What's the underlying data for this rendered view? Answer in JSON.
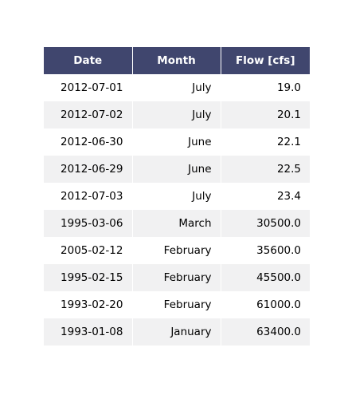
{
  "chart_data": {
    "type": "table",
    "columns": [
      "Date",
      "Month",
      "Flow [cfs]"
    ],
    "rows": [
      [
        "2012-07-01",
        "July",
        "19.0"
      ],
      [
        "2012-07-02",
        "July",
        "20.1"
      ],
      [
        "2012-06-30",
        "June",
        "22.1"
      ],
      [
        "2012-06-29",
        "June",
        "22.5"
      ],
      [
        "2012-07-03",
        "July",
        "23.4"
      ],
      [
        "1995-03-06",
        "March",
        "30500.0"
      ],
      [
        "2005-02-12",
        "February",
        "35600.0"
      ],
      [
        "1995-02-15",
        "February",
        "45500.0"
      ],
      [
        "1993-02-20",
        "February",
        "61000.0"
      ],
      [
        "1993-01-08",
        "January",
        "63400.0"
      ]
    ]
  },
  "colors": {
    "header_bg": "#40466e",
    "header_text": "#ffffff",
    "stripe_bg": "#f1f1f2"
  }
}
